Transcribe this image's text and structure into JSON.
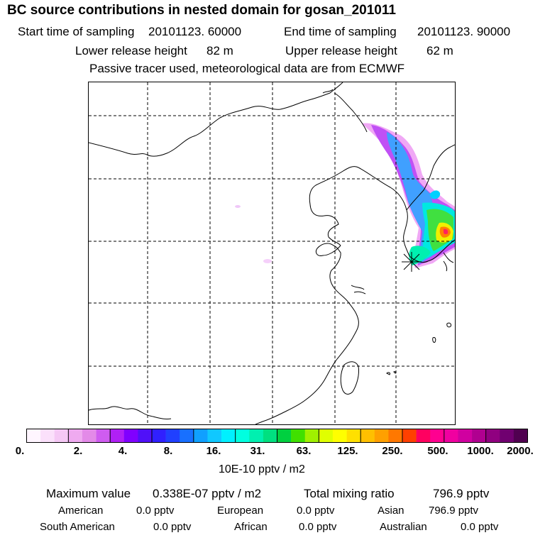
{
  "title": "BC  source contributions in nested domain for gosan_201011",
  "header": {
    "start_label": "Start time of sampling",
    "start_value": "20101123. 60000",
    "end_label": "End time of sampling",
    "end_value": "20101123. 90000",
    "lower_label": "Lower release height",
    "lower_value": "82 m",
    "upper_label": "Upper release height",
    "upper_value": "62 m",
    "tracer_note": "Passive tracer used, meteorological data are from ECMWF"
  },
  "colorbar": {
    "ticks": [
      "0.",
      "2.",
      "4.",
      "8.",
      "16.",
      "31.",
      "63.",
      "125.",
      "250.",
      "500.",
      "1000.",
      "2000."
    ],
    "colors": [
      "#fff6ff",
      "#fbe0fb",
      "#f5c8f5",
      "#efaaf0",
      "#e38ae8",
      "#cf5cf0",
      "#b020f5",
      "#8000ff",
      "#5010f8",
      "#3020ff",
      "#2040ff",
      "#1870ff",
      "#10a0ff",
      "#10c8ff",
      "#00f0ff",
      "#00ffe0",
      "#00f0b0",
      "#00e080",
      "#00d040",
      "#40e000",
      "#a0f000",
      "#e0ff00",
      "#ffff00",
      "#ffe000",
      "#ffc000",
      "#ffa000",
      "#ff7800",
      "#ff4000",
      "#ff0060",
      "#ff0090",
      "#f000a0",
      "#d000a0",
      "#b00090",
      "#900080",
      "#700070",
      "#500050"
    ],
    "units": "10E-10 pptv / m2"
  },
  "footer": {
    "max_label": "Maximum value",
    "max_value": "0.338E-07 pptv / m2",
    "total_label": "Total mixing ratio",
    "total_value": "796.9 pptv",
    "regions": [
      {
        "name": "American",
        "value": "0.0 pptv"
      },
      {
        "name": "European",
        "value": "0.0 pptv"
      },
      {
        "name": "Asian",
        "value": "796.9 pptv"
      },
      {
        "name": "South American",
        "value": "0.0 pptv"
      },
      {
        "name": "African",
        "value": "0.0 pptv"
      },
      {
        "name": "Australian",
        "value": "0.0 pptv"
      }
    ]
  }
}
